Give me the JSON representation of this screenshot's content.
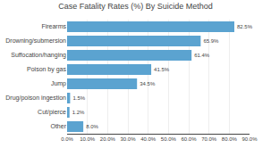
{
  "chart_data": {
    "type": "bar",
    "orientation": "horizontal",
    "title": "Case Fatality Rates (%) By Suicide Method",
    "categories": [
      "Other",
      "Cut/pierce",
      "Drug/poison ingestion",
      "Jump",
      "Poison by gas",
      "Suffocation/hanging",
      "Drowning/submersion",
      "Firearms"
    ],
    "values": [
      8.0,
      1.2,
      1.5,
      34.5,
      41.5,
      61.4,
      65.9,
      82.5
    ],
    "value_labels": [
      "8.0%",
      "1.2%",
      "1.5%",
      "34.5%",
      "41.5%",
      "61.4%",
      "65.9%",
      "82.5%"
    ],
    "data_labels": true,
    "color": "#5ba3d0",
    "xlim": [
      0,
      90
    ],
    "xticks": [
      {
        "value": 0,
        "label": "0.0%"
      },
      {
        "value": 10,
        "label": "10.0%"
      },
      {
        "value": 20,
        "label": "20.0%"
      },
      {
        "value": 30,
        "label": "30.0%"
      },
      {
        "value": 40,
        "label": "40.0%"
      },
      {
        "value": 50,
        "label": "50.0%"
      },
      {
        "value": 60,
        "label": "60.0%"
      },
      {
        "value": 70,
        "label": "70.0%"
      },
      {
        "value": 80,
        "label": "80.0%"
      },
      {
        "value": 90,
        "label": "90.0%"
      }
    ],
    "grid": true
  }
}
